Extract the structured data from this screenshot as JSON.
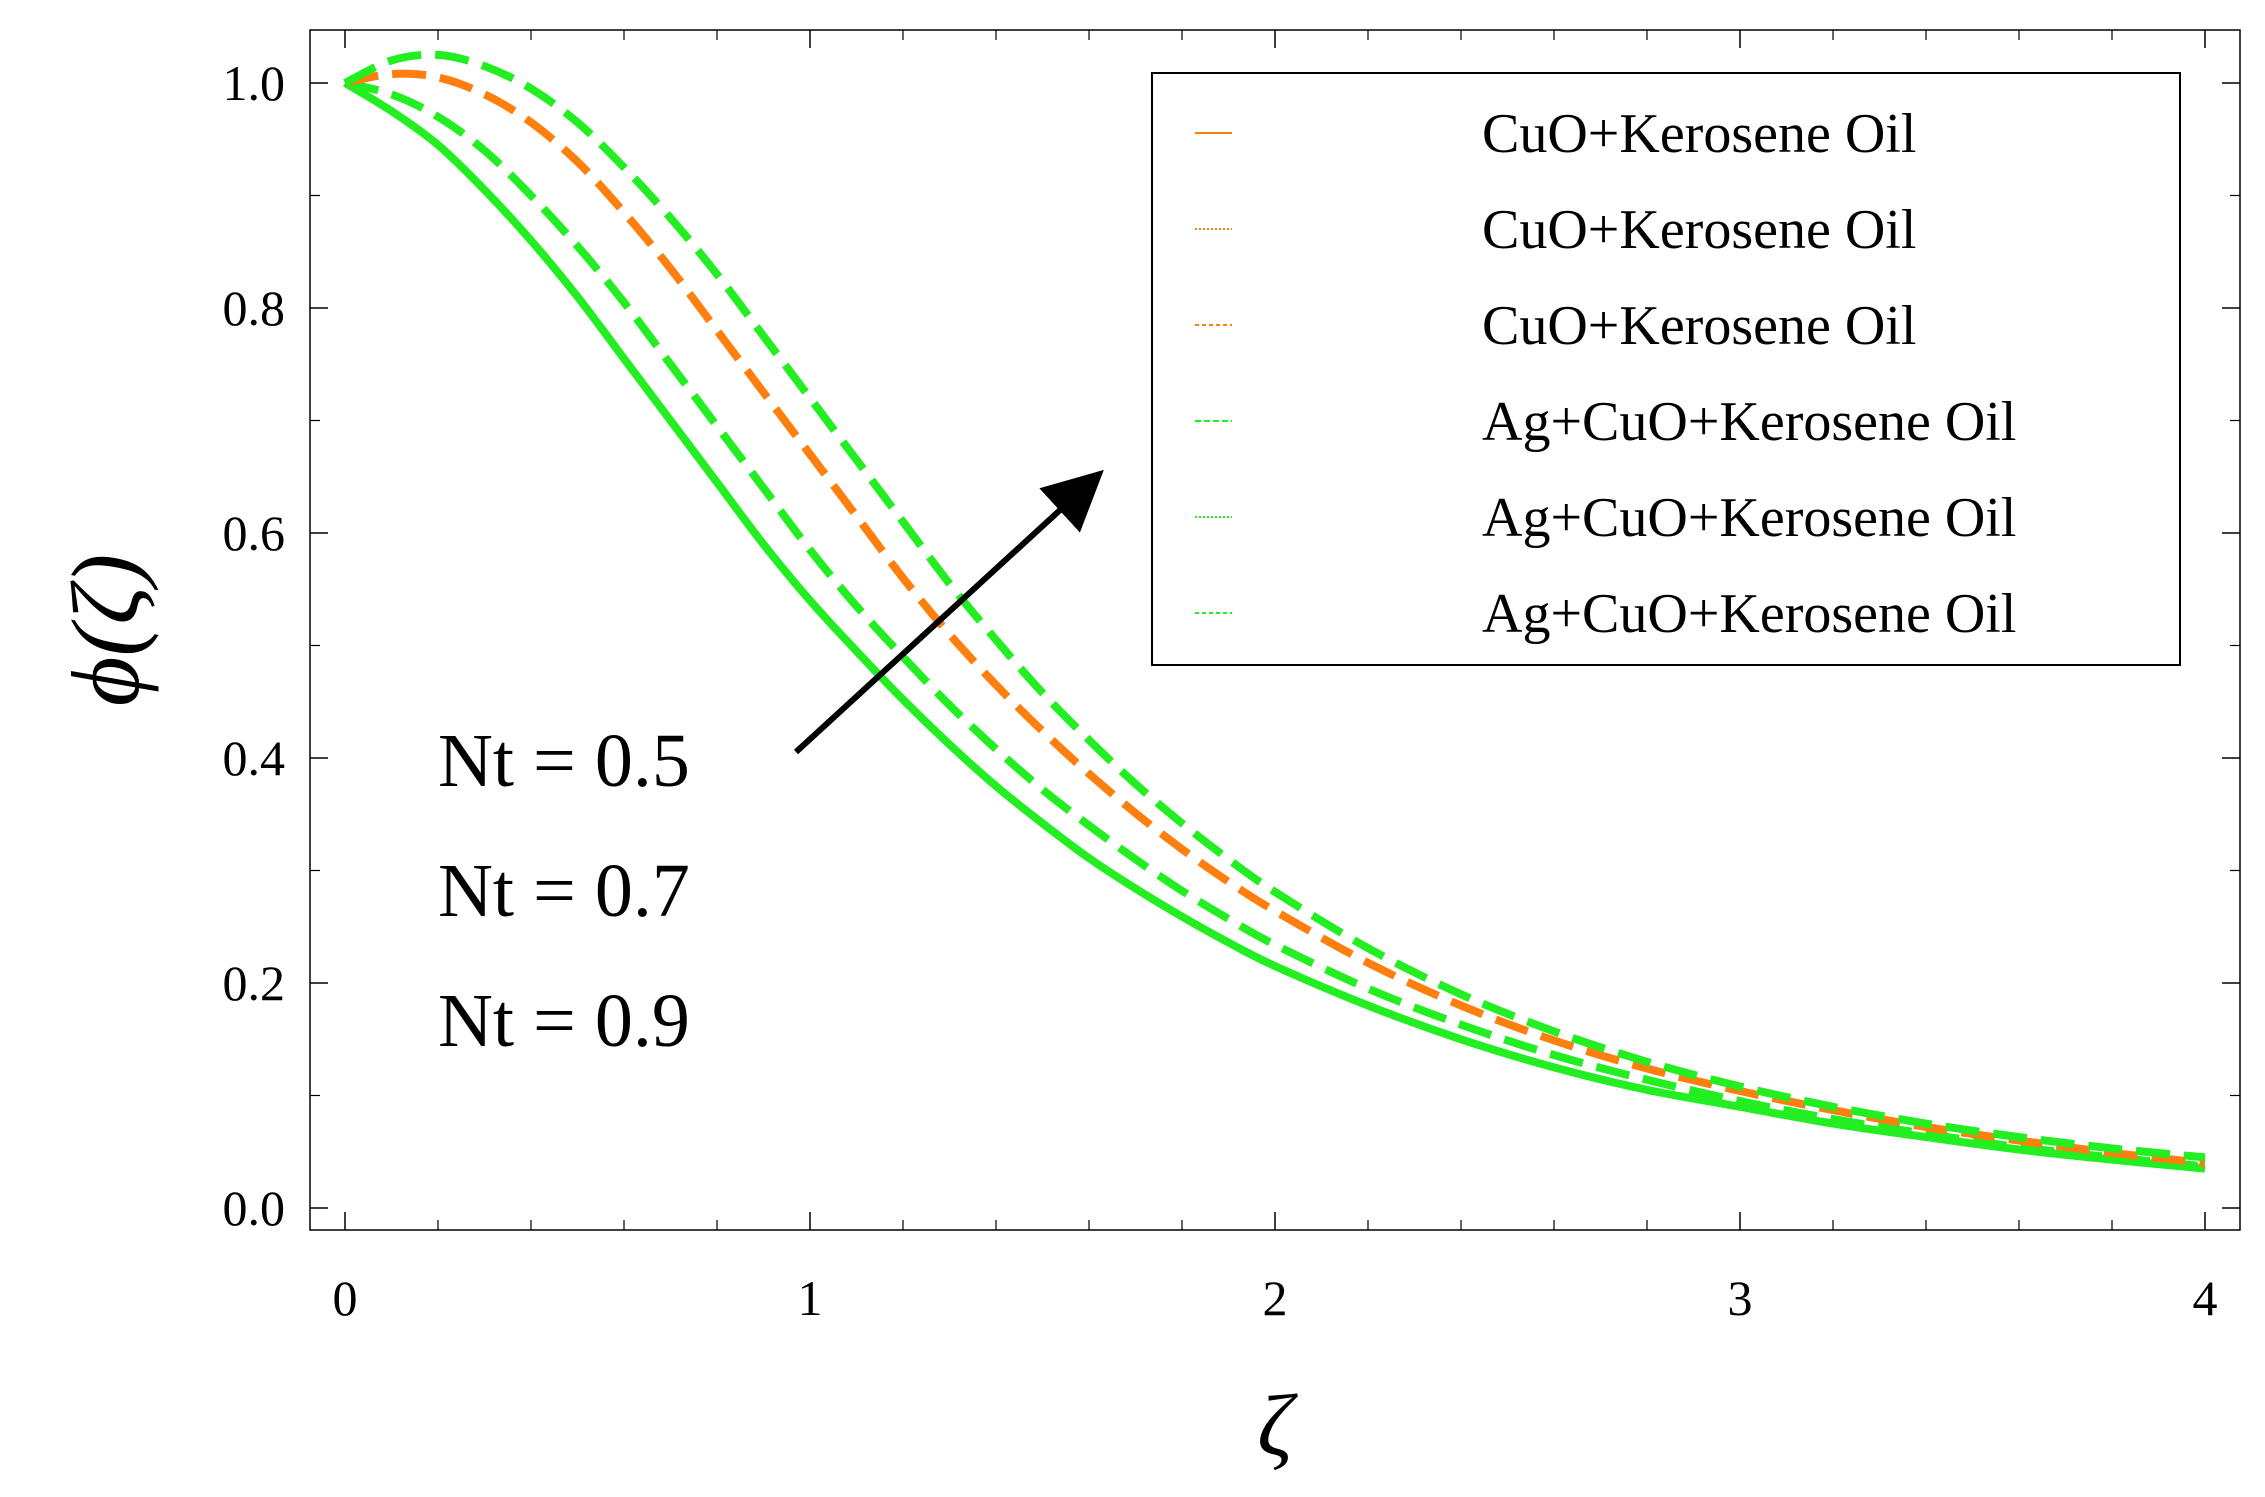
{
  "chart_data": {
    "type": "line",
    "title": "",
    "xlabel": "ζ",
    "ylabel": "ϕ(ζ)",
    "xlim": [
      0,
      4
    ],
    "ylim": [
      0,
      1.05
    ],
    "xticks": [
      "0",
      "1",
      "2",
      "3",
      "4"
    ],
    "yticks": [
      "0.0",
      "0.2",
      "0.4",
      "0.6",
      "0.8",
      "1.0"
    ],
    "grid": false,
    "legend_position": "top-right",
    "legend": [
      "CuO+Kerosene Oil",
      "CuO+Kerosene Oil",
      "CuO+Kerosene Oil",
      "Ag+CuO+Kerosene Oil",
      "Ag+CuO+Kerosene Oil",
      "Ag+CuO+Kerosene Oil"
    ],
    "annotations": [
      "Nt = 0.5",
      "Nt = 0.7",
      "Nt = 0.9"
    ],
    "colors": {
      "cuo": "#ff7f0e",
      "hybrid": "#22ee22"
    },
    "series": [
      {
        "name": "Ag+CuO+Kerosene Oil, Nt = 0.5",
        "style": "solid",
        "color": "#22ee22",
        "x": [
          0,
          0.1,
          0.2,
          0.3,
          0.4,
          0.5,
          0.6,
          0.7,
          0.8,
          0.9,
          1.0,
          1.1,
          1.2,
          1.3,
          1.4,
          1.5,
          1.6,
          1.7,
          1.8,
          1.9,
          2.0,
          2.2,
          2.4,
          2.6,
          2.8,
          3.0,
          3.2,
          3.4,
          3.6,
          3.8,
          4.0
        ],
        "y": [
          1.0,
          0.975,
          0.945,
          0.905,
          0.86,
          0.81,
          0.755,
          0.7,
          0.645,
          0.59,
          0.54,
          0.495,
          0.452,
          0.412,
          0.375,
          0.342,
          0.311,
          0.284,
          0.259,
          0.236,
          0.215,
          0.18,
          0.15,
          0.125,
          0.105,
          0.09,
          0.075,
          0.063,
          0.052,
          0.043,
          0.035
        ]
      },
      {
        "name": "Ag+CuO+Kerosene Oil, Nt = 0.7",
        "style": "dashed",
        "color": "#22ee22",
        "x": [
          0,
          0.1,
          0.2,
          0.3,
          0.4,
          0.5,
          0.6,
          0.7,
          0.8,
          0.9,
          1.0,
          1.1,
          1.2,
          1.3,
          1.4,
          1.5,
          1.6,
          1.7,
          1.8,
          1.9,
          2.0,
          2.2,
          2.4,
          2.6,
          2.8,
          3.0,
          3.2,
          3.4,
          3.6,
          3.8,
          4.0
        ],
        "y": [
          1.0,
          0.99,
          0.97,
          0.94,
          0.9,
          0.855,
          0.805,
          0.75,
          0.695,
          0.64,
          0.585,
          0.535,
          0.49,
          0.447,
          0.408,
          0.372,
          0.34,
          0.31,
          0.282,
          0.257,
          0.234,
          0.195,
          0.163,
          0.136,
          0.114,
          0.095,
          0.079,
          0.066,
          0.054,
          0.045,
          0.037
        ]
      },
      {
        "name": "CuO+Kerosene Oil, Nt = 0.7",
        "style": "dashed",
        "color": "#ff7f0e",
        "x": [
          0,
          0.1,
          0.2,
          0.3,
          0.4,
          0.5,
          0.6,
          0.7,
          0.8,
          0.9,
          1.0,
          1.1,
          1.2,
          1.3,
          1.4,
          1.5,
          1.6,
          1.7,
          1.8,
          1.9,
          2.0,
          2.2,
          2.4,
          2.6,
          2.8,
          3.0,
          3.2,
          3.4,
          3.6,
          3.8,
          4.0
        ],
        "y": [
          1.0,
          1.008,
          1.005,
          0.99,
          0.965,
          0.93,
          0.885,
          0.835,
          0.78,
          0.725,
          0.67,
          0.615,
          0.56,
          0.51,
          0.465,
          0.424,
          0.386,
          0.351,
          0.319,
          0.29,
          0.264,
          0.218,
          0.18,
          0.149,
          0.124,
          0.104,
          0.087,
          0.072,
          0.06,
          0.049,
          0.04
        ]
      },
      {
        "name": "Ag+CuO+Kerosene Oil, Nt = 0.9",
        "style": "dashed",
        "color": "#22ee22",
        "x": [
          0,
          0.1,
          0.2,
          0.3,
          0.4,
          0.5,
          0.6,
          0.7,
          0.8,
          0.9,
          1.0,
          1.1,
          1.2,
          1.3,
          1.4,
          1.5,
          1.6,
          1.7,
          1.8,
          1.9,
          2.0,
          2.2,
          2.4,
          2.6,
          2.8,
          3.0,
          3.2,
          3.4,
          3.6,
          3.8,
          4.0
        ],
        "y": [
          1.0,
          1.02,
          1.025,
          1.015,
          0.995,
          0.965,
          0.925,
          0.88,
          0.83,
          0.775,
          0.72,
          0.665,
          0.61,
          0.555,
          0.505,
          0.458,
          0.416,
          0.377,
          0.342,
          0.31,
          0.281,
          0.231,
          0.19,
          0.157,
          0.13,
          0.108,
          0.09,
          0.075,
          0.063,
          0.053,
          0.045
        ]
      }
    ]
  }
}
